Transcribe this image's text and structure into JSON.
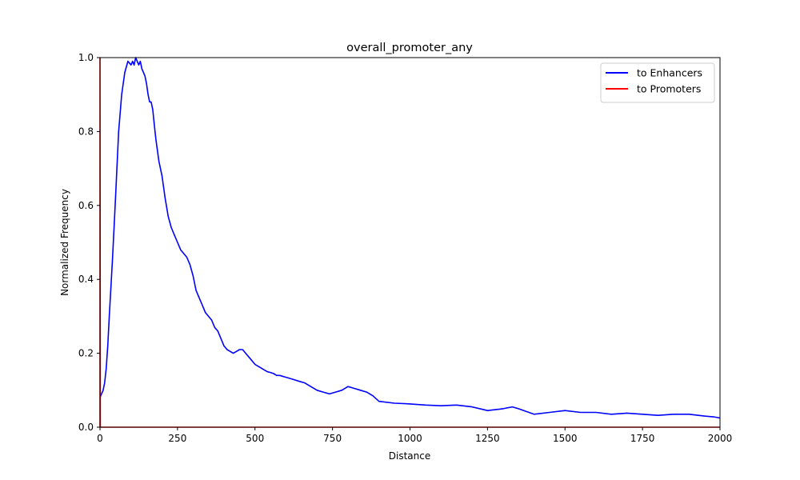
{
  "chart_data": {
    "type": "line",
    "title": "overall_promoter_any",
    "xlabel": "Distance",
    "ylabel": "Normalized Frequency",
    "xlim": [
      0,
      2000
    ],
    "ylim": [
      0,
      1.0
    ],
    "xticks": [
      0,
      250,
      500,
      750,
      1000,
      1250,
      1500,
      1750,
      2000
    ],
    "xtick_labels": [
      "0",
      "250",
      "500",
      "750",
      "1000",
      "1250",
      "1500",
      "1750",
      "2000"
    ],
    "yticks": [
      0.0,
      0.2,
      0.4,
      0.6,
      0.8,
      1.0
    ],
    "ytick_labels": [
      "0.0",
      "0.2",
      "0.4",
      "0.6",
      "0.8",
      "1.0"
    ],
    "grid": false,
    "legend_position": "top-right",
    "series": [
      {
        "name": "to Enhancers",
        "color": "#0000ff",
        "x": [
          0,
          5,
          10,
          15,
          20,
          25,
          30,
          40,
          50,
          60,
          70,
          80,
          90,
          100,
          105,
          110,
          115,
          120,
          125,
          130,
          135,
          140,
          145,
          150,
          155,
          160,
          165,
          170,
          175,
          180,
          190,
          200,
          210,
          220,
          230,
          240,
          250,
          260,
          270,
          280,
          290,
          300,
          310,
          320,
          330,
          340,
          350,
          360,
          370,
          380,
          390,
          400,
          410,
          420,
          430,
          440,
          450,
          460,
          470,
          480,
          490,
          500,
          510,
          520,
          530,
          540,
          550,
          560,
          570,
          580,
          600,
          620,
          640,
          660,
          680,
          700,
          720,
          740,
          760,
          780,
          800,
          820,
          840,
          860,
          880,
          900,
          950,
          1000,
          1050,
          1100,
          1150,
          1200,
          1250,
          1300,
          1330,
          1350,
          1400,
          1450,
          1500,
          1550,
          1600,
          1650,
          1700,
          1750,
          1800,
          1850,
          1900,
          1950,
          1980,
          2000
        ],
        "y": [
          0.08,
          0.09,
          0.1,
          0.12,
          0.16,
          0.22,
          0.3,
          0.45,
          0.62,
          0.8,
          0.9,
          0.96,
          0.99,
          0.98,
          0.99,
          0.98,
          1.0,
          0.99,
          0.98,
          0.99,
          0.97,
          0.96,
          0.95,
          0.93,
          0.9,
          0.88,
          0.88,
          0.86,
          0.82,
          0.78,
          0.72,
          0.68,
          0.62,
          0.57,
          0.54,
          0.52,
          0.5,
          0.48,
          0.47,
          0.46,
          0.44,
          0.41,
          0.37,
          0.35,
          0.33,
          0.31,
          0.3,
          0.29,
          0.27,
          0.26,
          0.24,
          0.22,
          0.21,
          0.205,
          0.2,
          0.205,
          0.21,
          0.21,
          0.2,
          0.19,
          0.18,
          0.17,
          0.165,
          0.16,
          0.155,
          0.15,
          0.148,
          0.145,
          0.14,
          0.14,
          0.135,
          0.13,
          0.125,
          0.12,
          0.11,
          0.1,
          0.095,
          0.09,
          0.095,
          0.1,
          0.11,
          0.105,
          0.1,
          0.095,
          0.085,
          0.07,
          0.065,
          0.063,
          0.06,
          0.058,
          0.06,
          0.055,
          0.045,
          0.05,
          0.055,
          0.05,
          0.035,
          0.04,
          0.045,
          0.04,
          0.04,
          0.035,
          0.038,
          0.035,
          0.032,
          0.035,
          0.035,
          0.03,
          0.028,
          0.025
        ]
      },
      {
        "name": "to Promoters",
        "color": "#ff0000",
        "x": [
          0,
          0,
          1,
          2000
        ],
        "y": [
          0.0,
          1.0,
          0.0,
          0.0
        ]
      }
    ]
  }
}
